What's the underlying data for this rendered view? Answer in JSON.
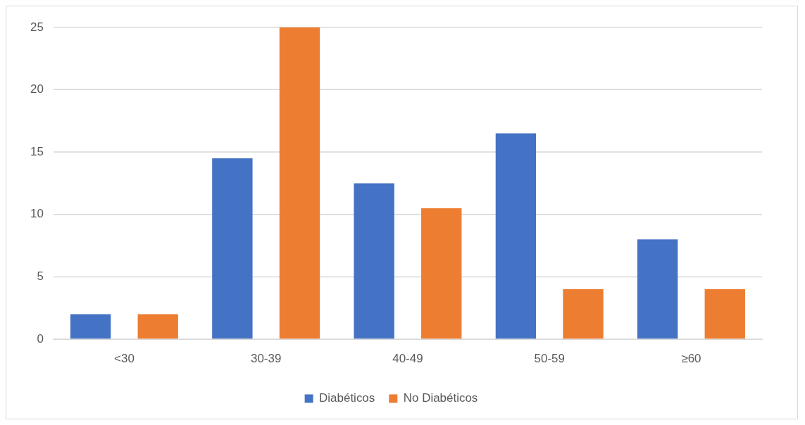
{
  "chart_data": {
    "type": "bar",
    "categories": [
      "<30",
      "30-39",
      "40-49",
      "50-59",
      "≥60"
    ],
    "series": [
      {
        "name": "Diabéticos",
        "color": "#4472c4",
        "values": [
          2,
          14.5,
          12.5,
          16.5,
          8
        ]
      },
      {
        "name": "No Diabéticos",
        "color": "#ed7d31",
        "values": [
          2,
          25,
          10.5,
          4,
          4
        ]
      }
    ],
    "ylim": [
      0,
      25
    ],
    "yticks": [
      0,
      5,
      10,
      15,
      20,
      25
    ],
    "grid": "y",
    "legend": "bottom"
  }
}
